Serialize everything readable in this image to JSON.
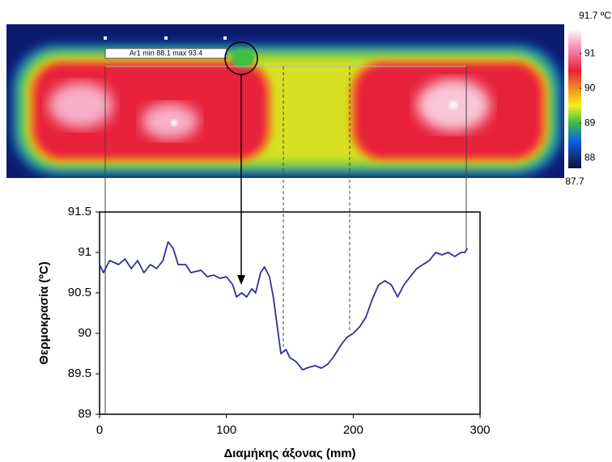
{
  "chart_data": [
    {
      "type": "thermal-image",
      "annotation": "Ar1 min 88.1 max 93.4",
      "colorbar_lim": [
        87.7,
        91.7
      ],
      "colorbar_ticks": [
        {
          "value": 91.7,
          "label": "91.7 ºC"
        },
        91,
        90,
        89,
        88,
        87.7
      ]
    },
    {
      "type": "line",
      "xlabel": "Διαμήκης άξονας (mm)",
      "ylabel": "Θερμοκρασία (ºC)",
      "x": [
        0,
        3,
        8,
        15,
        20,
        25,
        30,
        35,
        40,
        45,
        50,
        54,
        58,
        62,
        68,
        72,
        80,
        85,
        90,
        95,
        100,
        105,
        108,
        112,
        116,
        120,
        123,
        127,
        130,
        134,
        137,
        140,
        143,
        147,
        150,
        155,
        160,
        165,
        170,
        175,
        180,
        185,
        190,
        195,
        200,
        205,
        210,
        215,
        220,
        225,
        230,
        235,
        240,
        245,
        250,
        255,
        260,
        265,
        270,
        275,
        280,
        285,
        288,
        290
      ],
      "series": [
        {
          "color": "#2e3192",
          "values": [
            90.85,
            90.75,
            90.9,
            90.85,
            90.92,
            90.8,
            90.9,
            90.75,
            90.85,
            90.8,
            90.9,
            91.13,
            91.05,
            90.85,
            90.85,
            90.75,
            90.78,
            90.7,
            90.72,
            90.68,
            90.7,
            90.6,
            90.45,
            90.5,
            90.45,
            90.55,
            90.5,
            90.75,
            90.82,
            90.7,
            90.45,
            90.1,
            89.75,
            89.8,
            89.7,
            89.65,
            89.55,
            89.58,
            89.6,
            89.57,
            89.62,
            89.72,
            89.85,
            89.95,
            90.0,
            90.08,
            90.2,
            90.42,
            90.6,
            90.65,
            90.6,
            90.45,
            90.6,
            90.7,
            90.8,
            90.85,
            90.9,
            91.0,
            90.97,
            91.0,
            90.95,
            91.0,
            91.0,
            91.05
          ]
        }
      ],
      "xlim": [
        0,
        300
      ],
      "xticks": [
        0,
        100,
        200,
        300
      ],
      "ylim": [
        89,
        91.5
      ],
      "yticks": [
        89,
        89.5,
        90,
        90.5,
        91,
        91.5
      ]
    }
  ]
}
